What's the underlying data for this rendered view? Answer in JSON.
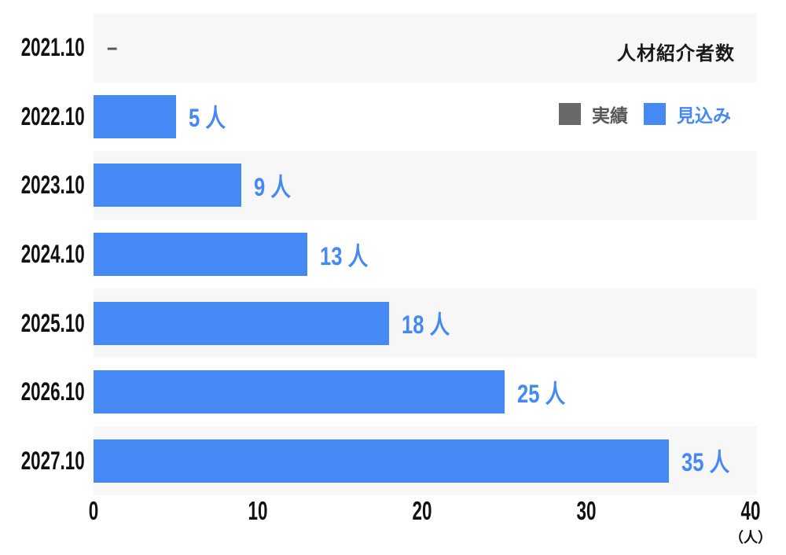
{
  "chart_data": {
    "type": "bar",
    "orientation": "horizontal",
    "title": "人材紹介者数",
    "categories": [
      "2021.10",
      "2022.10",
      "2023.10",
      "2024.10",
      "2025.10",
      "2026.10",
      "2027.10"
    ],
    "series": [
      {
        "name": "実績",
        "color": "#696969",
        "values": [
          null,
          null,
          null,
          null,
          null,
          null,
          null
        ]
      },
      {
        "name": "見込み",
        "color": "#4589f4",
        "values": [
          null,
          5,
          9,
          13,
          18,
          25,
          35
        ]
      }
    ],
    "value_labels": [
      "–",
      "5 人",
      "9 人",
      "13 人",
      "18 人",
      "25 人",
      "35 人"
    ],
    "xlim": [
      0,
      40
    ],
    "xticks": [
      0,
      10,
      20,
      30,
      40
    ],
    "x_unit_label": "（人）",
    "legend": [
      {
        "label": "実績",
        "color": "#696969",
        "text_color": "#58585a"
      },
      {
        "label": "見込み",
        "color": "#4589f4",
        "text_color": "#4589f4"
      }
    ],
    "legend_position": "top-right",
    "grid": false,
    "stripe_color": "#f7f7f7",
    "no_data_dash_color": "#58585a"
  }
}
